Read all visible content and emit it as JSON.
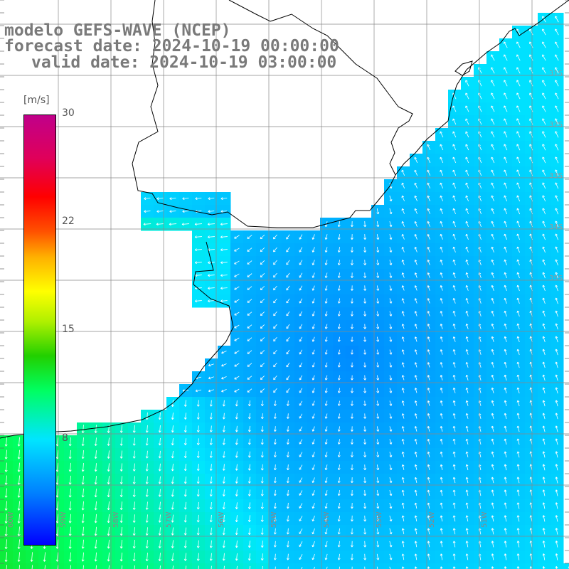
{
  "title": {
    "line1": "modelo GEFS-WAVE (NCEP)",
    "line2": "forecast date: 2024-10-19 00:00:00",
    "line3": "valid date: 2024-10-19 03:00:00"
  },
  "colorbar": {
    "unit": "[m/s]",
    "ticks": [
      "30",
      "22",
      "15",
      "8"
    ],
    "min": 0,
    "max": 30,
    "stops": [
      "#0000ff",
      "#0080ff",
      "#00e5ff",
      "#00ff60",
      "#22d000",
      "#b0f000",
      "#ffff00",
      "#ffb000",
      "#ff5000",
      "#ff0000",
      "#e0005a",
      "#c0008a"
    ]
  },
  "axes": {
    "lon_labels": [
      "60W",
      "59W",
      "58W",
      "57W",
      "56W",
      "55W",
      "54W",
      "53W",
      "52W",
      "51W"
    ],
    "lat_labels": [
      "31S",
      "32S",
      "33S",
      "34S",
      "35S"
    ]
  },
  "colors": {
    "land": "#ffffff",
    "coast": "#000000",
    "grid": "#888888",
    "arrow": "#ffffff"
  }
}
